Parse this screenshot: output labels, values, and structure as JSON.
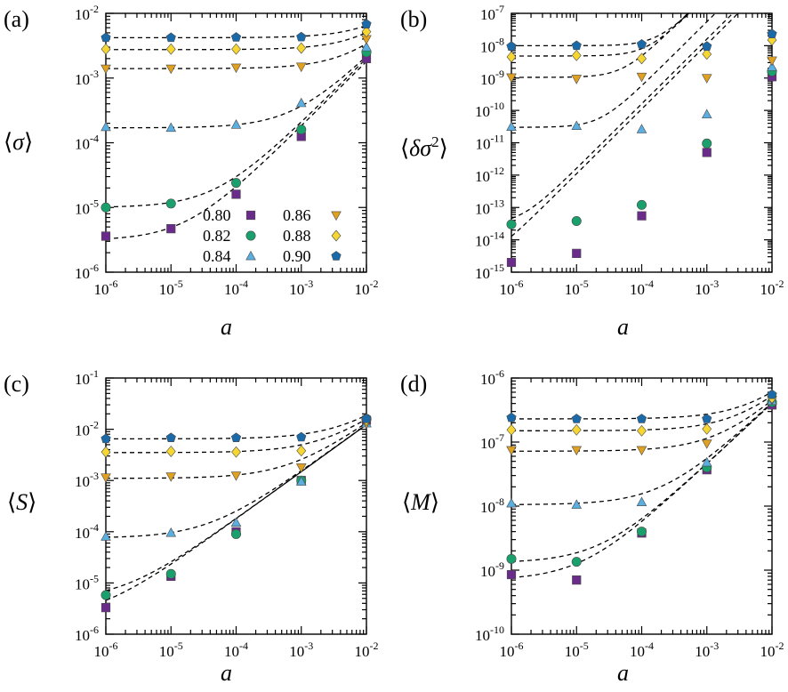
{
  "chart_data": [
    {
      "type": "scatter",
      "panel_label": "(a)",
      "ylabel_text": "⟨σ⟩",
      "ylabel_parts": {
        "open": "⟨",
        "sym": "σ",
        "close": "⟩"
      },
      "xlabel": "a",
      "xscale": "log",
      "yscale": "log",
      "xlim": [
        1e-06,
        0.01
      ],
      "ylim": [
        1e-06,
        0.01
      ],
      "x_ticks": [
        {
          "base": "10",
          "exp": "-6"
        },
        {
          "base": "10",
          "exp": "-5"
        },
        {
          "base": "10",
          "exp": "-4"
        },
        {
          "base": "10",
          "exp": "-3"
        },
        {
          "base": "10",
          "exp": "-2"
        }
      ],
      "y_ticks": [
        {
          "base": "10",
          "exp": "-6"
        },
        {
          "base": "10",
          "exp": "-5"
        },
        {
          "base": "10",
          "exp": "-4"
        },
        {
          "base": "10",
          "exp": "-3"
        },
        {
          "base": "10",
          "exp": "-2"
        }
      ],
      "x": [
        1e-06,
        1e-05,
        0.0001,
        0.001,
        0.01
      ],
      "legend": {
        "position": "lower-right",
        "entries": [
          {
            "label": "0.80",
            "series": 0
          },
          {
            "label": "0.86",
            "series": 3
          },
          {
            "label": "0.82",
            "series": 1
          },
          {
            "label": "0.88",
            "series": 4
          },
          {
            "label": "0.84",
            "series": 2
          },
          {
            "label": "0.90",
            "series": 5
          }
        ]
      },
      "series": [
        {
          "name": "0.80",
          "values": [
            3.6e-06,
            4.7e-06,
            1.6e-05,
            0.000125,
            0.002
          ],
          "fit": {
            "c": 3.1e-06,
            "k": 0.18,
            "p": 1.0
          }
        },
        {
          "name": "0.82",
          "values": [
            1e-05,
            1.15e-05,
            2.4e-05,
            0.00016,
            0.0025
          ],
          "fit": {
            "c": 1e-05,
            "k": 0.2,
            "p": 1.0
          }
        },
        {
          "name": "0.84",
          "values": [
            0.000175,
            0.00017,
            0.00019,
            0.00041,
            0.003
          ],
          "fit": {
            "c": 0.00017,
            "k": 0.2,
            "p": 1.0
          }
        },
        {
          "name": "0.86",
          "values": [
            0.0014,
            0.0014,
            0.00145,
            0.0015,
            0.004
          ],
          "fit": {
            "c": 0.0014,
            "k": 0.2,
            "p": 1.0
          }
        },
        {
          "name": "0.88",
          "values": [
            0.0028,
            0.0028,
            0.0028,
            0.0029,
            0.0052
          ],
          "fit": {
            "c": 0.00275,
            "k": 0.23,
            "p": 1.0
          }
        },
        {
          "name": "0.90",
          "values": [
            0.0042,
            0.0042,
            0.00425,
            0.0043,
            0.0068
          ],
          "fit": {
            "c": 0.0042,
            "k": 0.23,
            "p": 1.0
          }
        }
      ]
    },
    {
      "type": "scatter",
      "panel_label": "(b)",
      "ylabel_text": "⟨δσ2⟩",
      "ylabel_parts": {
        "open": "⟨",
        "sym": "δσ",
        "sup": "2",
        "close": "⟩"
      },
      "xlabel": "a",
      "xscale": "log",
      "yscale": "log",
      "xlim": [
        1e-06,
        0.01
      ],
      "ylim": [
        1e-15,
        1e-07
      ],
      "x_ticks": [
        {
          "base": "10",
          "exp": "-6"
        },
        {
          "base": "10",
          "exp": "-5"
        },
        {
          "base": "10",
          "exp": "-4"
        },
        {
          "base": "10",
          "exp": "-3"
        },
        {
          "base": "10",
          "exp": "-2"
        }
      ],
      "y_ticks": [
        {
          "base": "10",
          "exp": "-15"
        },
        {
          "base": "10",
          "exp": "-14"
        },
        {
          "base": "10",
          "exp": "-13"
        },
        {
          "base": "10",
          "exp": "-12"
        },
        {
          "base": "10",
          "exp": "-11"
        },
        {
          "base": "10",
          "exp": "-10"
        },
        {
          "base": "10",
          "exp": "-9"
        },
        {
          "base": "10",
          "exp": "-8"
        },
        {
          "base": "10",
          "exp": "-7"
        }
      ],
      "x": [
        1e-06,
        1e-05,
        0.0001,
        0.001,
        0.01
      ],
      "series": [
        {
          "name": "0.80",
          "values": [
            2e-15,
            3.8e-15,
            5.5e-14,
            5e-12,
            1.1e-09
          ],
          "fit": {
            "c": 1.8e-15,
            "k": 0.011,
            "p": 2.0
          }
        },
        {
          "name": "0.82",
          "values": [
            3e-14,
            3.8e-14,
            1.2e-13,
            9.5e-12,
            1.6e-09
          ],
          "fit": {
            "c": 3e-14,
            "k": 0.016,
            "p": 2.0
          }
        },
        {
          "name": "0.84",
          "values": [
            3.1e-11,
            3.3e-11,
            2.6e-11,
            7.5e-11,
            2.2e-09
          ],
          "fit": {
            "c": 3e-11,
            "k": 0.055,
            "p": 2.0
          }
        },
        {
          "name": "0.86",
          "values": [
            1.05e-09,
            9.5e-10,
            1.1e-09,
            1e-09,
            3.5e-09
          ],
          "fit": {
            "c": 1.05e-09,
            "k": 0.38,
            "p": 2.0
          }
        },
        {
          "name": "0.88",
          "values": [
            4.5e-09,
            5e-09,
            4e-09,
            5.5e-09,
            1.5e-08
          ],
          "fit": {
            "c": 4.8e-09,
            "k": 0.33,
            "p": 2.0
          }
        },
        {
          "name": "0.90",
          "values": [
            9.5e-09,
            1e-08,
            1.1e-08,
            9.5e-09,
            2.3e-08
          ],
          "fit": {
            "c": 1e-08,
            "k": 0.32,
            "p": 2.0
          }
        }
      ]
    },
    {
      "type": "scatter",
      "panel_label": "(c)",
      "ylabel_text": "⟨S⟩",
      "ylabel_parts": {
        "open": "⟨",
        "sym": "S",
        "close": "⟩"
      },
      "xlabel": "a",
      "xscale": "log",
      "yscale": "log",
      "xlim": [
        1e-06,
        0.01
      ],
      "ylim": [
        1e-06,
        0.1
      ],
      "x_ticks": [
        {
          "base": "10",
          "exp": "-6"
        },
        {
          "base": "10",
          "exp": "-5"
        },
        {
          "base": "10",
          "exp": "-4"
        },
        {
          "base": "10",
          "exp": "-3"
        },
        {
          "base": "10",
          "exp": "-2"
        }
      ],
      "y_ticks": [
        {
          "base": "10",
          "exp": "-6"
        },
        {
          "base": "10",
          "exp": "-5"
        },
        {
          "base": "10",
          "exp": "-4"
        },
        {
          "base": "10",
          "exp": "-3"
        },
        {
          "base": "10",
          "exp": "-2"
        },
        {
          "base": "10",
          "exp": "-1"
        }
      ],
      "x": [
        1e-06,
        1e-05,
        0.0001,
        0.001,
        0.01
      ],
      "series": [
        {
          "name": "0.80",
          "values": [
            3.3e-06,
            1.35e-05,
            0.0001,
            0.001,
            0.015
          ],
          "fit": {
            "c": 2e-06,
            "k": 0.85,
            "p": 0.92
          }
        },
        {
          "name": "0.82",
          "values": [
            5.8e-06,
            1.5e-05,
            9e-05,
            0.001,
            0.016
          ],
          "fit": {
            "c": 4.5e-06,
            "k": 0.85,
            "p": 0.92
          }
        },
        {
          "name": "0.84",
          "values": [
            8e-05,
            9.5e-05,
            0.00015,
            0.00095,
            0.013
          ],
          "fit": {
            "c": 7.5e-05,
            "k": 0.85,
            "p": 0.92
          }
        },
        {
          "name": "0.86",
          "values": [
            0.00115,
            0.0012,
            0.00125,
            0.0018,
            0.013
          ],
          "fit": {
            "c": 0.0011,
            "k": 0.85,
            "p": 0.92
          }
        },
        {
          "name": "0.88",
          "values": [
            0.0036,
            0.0037,
            0.0036,
            0.0038,
            0.015
          ],
          "fit": {
            "c": 0.0035,
            "k": 0.85,
            "p": 0.92
          }
        },
        {
          "name": "0.90",
          "values": [
            0.0065,
            0.0068,
            0.0068,
            0.007,
            0.016
          ],
          "fit": {
            "c": 0.0065,
            "k": 0.85,
            "p": 0.92
          }
        }
      ]
    },
    {
      "type": "scatter",
      "panel_label": "(d)",
      "ylabel_text": "⟨M⟩",
      "ylabel_parts": {
        "open": "⟨",
        "sym": "M",
        "close": "⟩"
      },
      "xlabel": "a",
      "xscale": "log",
      "yscale": "log",
      "xlim": [
        1e-06,
        0.01
      ],
      "ylim": [
        1e-10,
        1e-06
      ],
      "x_ticks": [
        {
          "base": "10",
          "exp": "-6"
        },
        {
          "base": "10",
          "exp": "-5"
        },
        {
          "base": "10",
          "exp": "-4"
        },
        {
          "base": "10",
          "exp": "-3"
        },
        {
          "base": "10",
          "exp": "-2"
        }
      ],
      "y_ticks": [
        {
          "base": "10",
          "exp": "-10"
        },
        {
          "base": "10",
          "exp": "-9"
        },
        {
          "base": "10",
          "exp": "-8"
        },
        {
          "base": "10",
          "exp": "-7"
        },
        {
          "base": "10",
          "exp": "-6"
        }
      ],
      "x": [
        1e-06,
        1e-05,
        0.0001,
        0.001,
        0.01
      ],
      "series": [
        {
          "name": "0.80",
          "values": [
            8.5e-10,
            7e-10,
            3.8e-09,
            3.7e-08,
            3.8e-07
          ],
          "fit": {
            "c": 7e-10,
            "k": 3.2e-05,
            "p": 0.95
          }
        },
        {
          "name": "0.82",
          "values": [
            1.5e-09,
            1.35e-09,
            4e-09,
            4e-08,
            4.2e-07
          ],
          "fit": {
            "c": 1.3e-09,
            "k": 3.2e-05,
            "p": 0.95
          }
        },
        {
          "name": "0.84",
          "values": [
            1.1e-08,
            1.05e-08,
            1.15e-08,
            4.8e-08,
            4.4e-07
          ],
          "fit": {
            "c": 1.05e-08,
            "k": 3.2e-05,
            "p": 0.95
          }
        },
        {
          "name": "0.86",
          "values": [
            7.5e-08,
            7.5e-08,
            7.5e-08,
            9.5e-08,
            4.6e-07
          ],
          "fit": {
            "c": 7.2e-08,
            "k": 3e-05,
            "p": 0.95
          }
        },
        {
          "name": "0.88",
          "values": [
            1.55e-07,
            1.55e-07,
            1.5e-07,
            1.6e-07,
            4.9e-07
          ],
          "fit": {
            "c": 1.5e-07,
            "k": 3e-05,
            "p": 0.95
          }
        },
        {
          "name": "0.90",
          "values": [
            2.4e-07,
            2.3e-07,
            2.3e-07,
            2.3e-07,
            5.5e-07
          ],
          "fit": {
            "c": 2.3e-07,
            "k": 3e-05,
            "p": 0.95
          }
        }
      ]
    }
  ],
  "style": {
    "series_colors": [
      "#6a2c8a",
      "#1aa06c",
      "#5aaee0",
      "#e0a020",
      "#f5d632",
      "#1a6aaa"
    ],
    "series_markers": [
      "square",
      "circle",
      "triangle-up",
      "triangle-down",
      "diamond",
      "pentagon"
    ],
    "fit_line_color": "#000000"
  }
}
